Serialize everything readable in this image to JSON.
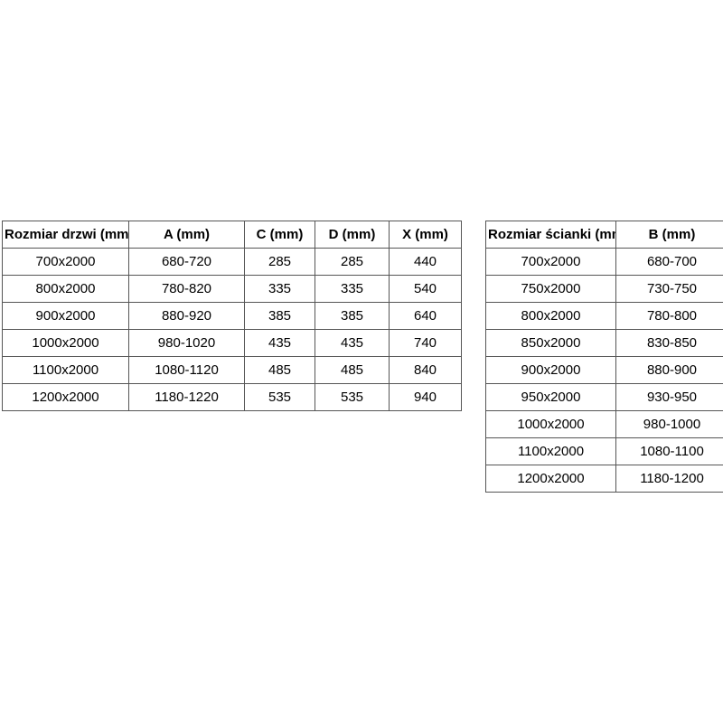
{
  "colors": {
    "background": "#ffffff",
    "table_border": "#555555",
    "text": "#000000"
  },
  "tables": {
    "doors": {
      "name": "door-sizes",
      "headers": [
        "Rozmiar drzwi (mm)",
        "A (mm)",
        "C (mm)",
        "D (mm)",
        "X (mm)"
      ],
      "rows": [
        [
          "700x2000",
          "680-720",
          "285",
          "285",
          "440"
        ],
        [
          "800x2000",
          "780-820",
          "335",
          "335",
          "540"
        ],
        [
          "900x2000",
          "880-920",
          "385",
          "385",
          "640"
        ],
        [
          "1000x2000",
          "980-1020",
          "435",
          "435",
          "740"
        ],
        [
          "1100x2000",
          "1080-1120",
          "485",
          "485",
          "840"
        ],
        [
          "1200x2000",
          "1180-1220",
          "535",
          "535",
          "940"
        ]
      ]
    },
    "walls": {
      "name": "wall-sizes",
      "headers": [
        "Rozmiar ścianki (mm)",
        "B (mm)"
      ],
      "rows": [
        [
          "700x2000",
          "680-700"
        ],
        [
          "750x2000",
          "730-750"
        ],
        [
          "800x2000",
          "780-800"
        ],
        [
          "850x2000",
          "830-850"
        ],
        [
          "900x2000",
          "880-900"
        ],
        [
          "950x2000",
          "930-950"
        ],
        [
          "1000x2000",
          "980-1000"
        ],
        [
          "1100x2000",
          "1080-1100"
        ],
        [
          "1200x2000",
          "1180-1200"
        ]
      ]
    }
  }
}
